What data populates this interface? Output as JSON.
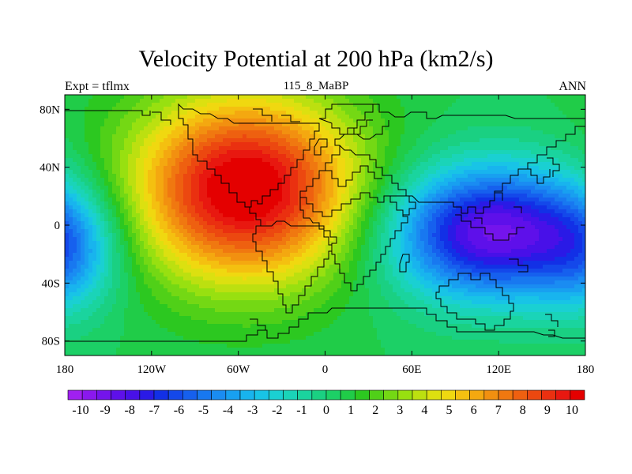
{
  "chart_data": {
    "type": "heatmap",
    "title": "Velocity Potential at 200 hPa (km2/s)",
    "left_label": "Expt = tflmx",
    "center_label": "115_8_MaBP",
    "right_label": "ANN",
    "x_range": [
      -180,
      180
    ],
    "y_range": [
      -90,
      90
    ],
    "x_ticks": [
      {
        "value": -180,
        "label": "180"
      },
      {
        "value": -120,
        "label": "120W"
      },
      {
        "value": -60,
        "label": "60W"
      },
      {
        "value": 0,
        "label": "0"
      },
      {
        "value": 60,
        "label": "60E"
      },
      {
        "value": 120,
        "label": "120E"
      },
      {
        "value": 180,
        "label": "180"
      }
    ],
    "y_ticks": [
      {
        "value": 80,
        "label": "80N"
      },
      {
        "value": 40,
        "label": "40N"
      },
      {
        "value": 0,
        "label": "0"
      },
      {
        "value": -40,
        "label": "40S"
      },
      {
        "value": -80,
        "label": "80S"
      }
    ],
    "field_features": [
      {
        "lon": -55,
        "lat": 25,
        "value": 10.5,
        "type": "maximum"
      },
      {
        "lon": 115,
        "lat": -5,
        "value": -9.5,
        "type": "minimum"
      },
      {
        "lon": -178,
        "lat": -18,
        "value": -3.5,
        "type": "local-minimum"
      }
    ],
    "colorbar": {
      "min": -10.5,
      "max": 10.5,
      "labels": [
        "-10",
        "-9",
        "-8",
        "-7",
        "-6",
        "-5",
        "-4",
        "-3",
        "-2",
        "-1",
        "0",
        "1",
        "2",
        "3",
        "4",
        "5",
        "6",
        "7",
        "8",
        "9",
        "10"
      ],
      "colors": [
        "#a020f0",
        "#8a18ee",
        "#7414ec",
        "#5e10ea",
        "#4810e8",
        "#2a1ae6",
        "#1230e6",
        "#1448ea",
        "#1660ee",
        "#1878f0",
        "#1a8cf2",
        "#18a0f0",
        "#18b4ee",
        "#18c4e6",
        "#1ad0d2",
        "#1ad4b8",
        "#1ad49e",
        "#1ad082",
        "#1cd066",
        "#20cc48",
        "#2cc820",
        "#50d018",
        "#74d814",
        "#98e010",
        "#bce010",
        "#dce010",
        "#f0d810",
        "#f4c010",
        "#f4a810",
        "#f29010",
        "#f07810",
        "#ee6010",
        "#ec4810",
        "#ea3010",
        "#e81810",
        "#e40000"
      ]
    }
  }
}
